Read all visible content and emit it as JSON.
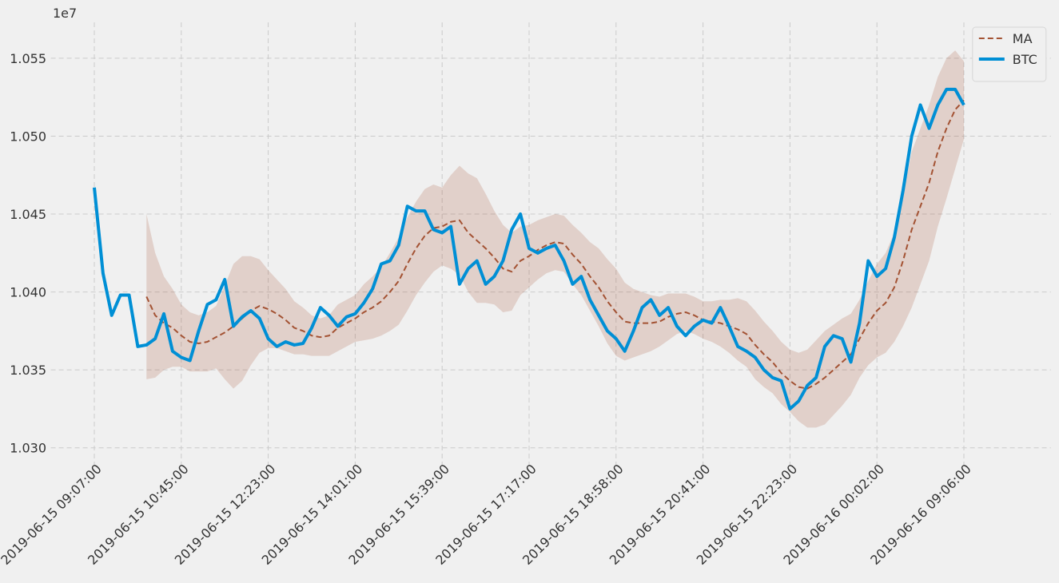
{
  "chart_data": {
    "type": "line",
    "y_offset_label": "1e7",
    "grid": true,
    "legend": "upper right",
    "xlim": [
      -50,
      1100
    ],
    "ylim": [
      10285000,
      10573000
    ],
    "xticks": [
      {
        "value": 0,
        "label": "2019-06-15 09:07:00"
      },
      {
        "value": 100,
        "label": "2019-06-15 10:45:00"
      },
      {
        "value": 200,
        "label": "2019-06-15 12:23:00"
      },
      {
        "value": 300,
        "label": "2019-06-15 14:01:00"
      },
      {
        "value": 400,
        "label": "2019-06-15 15:39:00"
      },
      {
        "value": 500,
        "label": "2019-06-15 17:17:00"
      },
      {
        "value": 600,
        "label": "2019-06-15 18:58:00"
      },
      {
        "value": 700,
        "label": "2019-06-15 20:41:00"
      },
      {
        "value": 800,
        "label": "2019-06-15 22:23:00"
      },
      {
        "value": 900,
        "label": "2019-06-16 00:02:00"
      },
      {
        "value": 1000,
        "label": "2019-06-16 09:06:00"
      }
    ],
    "yticks": [
      {
        "value": 10300000,
        "label": "1.030"
      },
      {
        "value": 10350000,
        "label": "1.035"
      },
      {
        "value": 10400000,
        "label": "1.040"
      },
      {
        "value": 10450000,
        "label": "1.045"
      },
      {
        "value": 10500000,
        "label": "1.050"
      },
      {
        "value": 10550000,
        "label": "1.055"
      }
    ],
    "x": [
      0,
      10,
      20,
      30,
      40,
      50,
      60,
      70,
      80,
      90,
      100,
      110,
      120,
      130,
      140,
      150,
      160,
      170,
      180,
      190,
      200,
      210,
      220,
      230,
      240,
      250,
      260,
      270,
      280,
      290,
      300,
      310,
      320,
      330,
      340,
      350,
      360,
      370,
      380,
      390,
      400,
      410,
      420,
      430,
      440,
      450,
      460,
      470,
      480,
      490,
      500,
      510,
      520,
      530,
      540,
      550,
      560,
      570,
      580,
      590,
      600,
      610,
      620,
      630,
      640,
      650,
      660,
      670,
      680,
      690,
      700,
      710,
      720,
      730,
      740,
      750,
      760,
      770,
      780,
      790,
      800,
      810,
      820,
      830,
      840,
      850,
      860,
      870,
      880,
      890,
      900,
      910,
      920,
      930,
      940,
      950,
      960,
      970,
      980,
      990,
      1000
    ],
    "band": {
      "color": "#a35233",
      "upper": [
        null,
        null,
        null,
        null,
        null,
        null,
        10450000,
        10425000,
        10410000,
        10402000,
        10392000,
        10387000,
        10385000,
        10387000,
        10391000,
        10404000,
        10418000,
        10423000,
        10423000,
        10421000,
        10414000,
        10408000,
        10402000,
        10394000,
        10390000,
        10385000,
        10383000,
        10385000,
        10392000,
        10395000,
        10398000,
        10405000,
        10410000,
        10416000,
        10425000,
        10435000,
        10448000,
        10458000,
        10466000,
        10469000,
        10467000,
        10475000,
        10481000,
        10476000,
        10473000,
        10463000,
        10452000,
        10443000,
        10438000,
        10442000,
        10443000,
        10446000,
        10448000,
        10450000,
        10449000,
        10443000,
        10438000,
        10432000,
        10428000,
        10421000,
        10415000,
        10406000,
        10402000,
        10400000,
        10398000,
        10397000,
        10399000,
        10399000,
        10399000,
        10397000,
        10394000,
        10394000,
        10395000,
        10395000,
        10396000,
        10394000,
        10388000,
        10381000,
        10375000,
        10368000,
        10363000,
        10361000,
        10363000,
        10369000,
        10375000,
        10379000,
        10383000,
        10386000,
        10395000,
        10407000,
        10418000,
        10425000,
        10438000,
        10462000,
        10490000,
        10505000,
        10520000,
        10538000,
        10550000,
        10555000,
        10548000
      ],
      "lower": [
        null,
        null,
        null,
        null,
        null,
        null,
        10344000,
        10345000,
        10350000,
        10352000,
        10352000,
        10349000,
        10349000,
        10349000,
        10351000,
        10344000,
        10338000,
        10343000,
        10353000,
        10361000,
        10364000,
        10364000,
        10362000,
        10360000,
        10360000,
        10359000,
        10359000,
        10359000,
        10362000,
        10365000,
        10368000,
        10369000,
        10370000,
        10372000,
        10375000,
        10379000,
        10388000,
        10398000,
        10406000,
        10413000,
        10417000,
        10415000,
        10411000,
        10400000,
        10393000,
        10393000,
        10392000,
        10387000,
        10388000,
        10398000,
        10403000,
        10408000,
        10412000,
        10414000,
        10413000,
        10405000,
        10398000,
        10388000,
        10378000,
        10367000,
        10359000,
        10356000,
        10358000,
        10360000,
        10362000,
        10365000,
        10369000,
        10373000,
        10375000,
        10373000,
        10370000,
        10368000,
        10365000,
        10361000,
        10356000,
        10352000,
        10344000,
        10339000,
        10335000,
        10328000,
        10323000,
        10317000,
        10313000,
        10313000,
        10315000,
        10321000,
        10327000,
        10334000,
        10345000,
        10353000,
        10358000,
        10361000,
        10368000,
        10378000,
        10390000,
        10405000,
        10420000,
        10442000,
        10460000,
        10479000,
        10498000
      ]
    },
    "series": [
      {
        "name": "MA",
        "color": "#a35233",
        "dashed": true,
        "values": [
          null,
          null,
          null,
          null,
          null,
          null,
          10397000,
          10385000,
          10380000,
          10377000,
          10372000,
          10368000,
          10367000,
          10368000,
          10371000,
          10374000,
          10378000,
          10383000,
          10388000,
          10391000,
          10389000,
          10386000,
          10382000,
          10377000,
          10375000,
          10372000,
          10371000,
          10372000,
          10377000,
          10380000,
          10383000,
          10387000,
          10390000,
          10394000,
          10400000,
          10407000,
          10418000,
          10428000,
          10436000,
          10441000,
          10442000,
          10445000,
          10446000,
          10438000,
          10433000,
          10428000,
          10422000,
          10415000,
          10413000,
          10420000,
          10423000,
          10427000,
          10430000,
          10432000,
          10431000,
          10424000,
          10418000,
          10410000,
          10403000,
          10394000,
          10387000,
          10381000,
          10380000,
          10380000,
          10380000,
          10381000,
          10384000,
          10386000,
          10387000,
          10385000,
          10382000,
          10381000,
          10380000,
          10378000,
          10376000,
          10373000,
          10366000,
          10360000,
          10355000,
          10348000,
          10343000,
          10339000,
          10338000,
          10341000,
          10345000,
          10350000,
          10355000,
          10360000,
          10370000,
          10380000,
          10388000,
          10393000,
          10403000,
          10420000,
          10440000,
          10455000,
          10470000,
          10490000,
          10505000,
          10517000,
          10523000
        ]
      },
      {
        "name": "BTC",
        "color": "#008fd5",
        "dashed": false,
        "values": [
          10467000,
          10412000,
          10385000,
          10398000,
          10398000,
          10365000,
          10366000,
          10370000,
          10386000,
          10362000,
          10358000,
          10356000,
          10375000,
          10392000,
          10395000,
          10408000,
          10378000,
          10384000,
          10388000,
          10383000,
          10370000,
          10365000,
          10368000,
          10366000,
          10367000,
          10377000,
          10390000,
          10385000,
          10378000,
          10384000,
          10386000,
          10393000,
          10402000,
          10418000,
          10420000,
          10430000,
          10455000,
          10452000,
          10452000,
          10440000,
          10438000,
          10442000,
          10405000,
          10415000,
          10420000,
          10405000,
          10410000,
          10420000,
          10440000,
          10450000,
          10428000,
          10425000,
          10428000,
          10430000,
          10420000,
          10405000,
          10410000,
          10395000,
          10385000,
          10375000,
          10370000,
          10362000,
          10375000,
          10390000,
          10395000,
          10385000,
          10390000,
          10378000,
          10372000,
          10378000,
          10382000,
          10380000,
          10390000,
          10378000,
          10365000,
          10362000,
          10358000,
          10350000,
          10345000,
          10343000,
          10325000,
          10330000,
          10340000,
          10345000,
          10365000,
          10372000,
          10370000,
          10355000,
          10380000,
          10420000,
          10410000,
          10415000,
          10435000,
          10465000,
          10500000,
          10520000,
          10505000,
          10520000,
          10530000,
          10530000,
          10520000
        ]
      }
    ]
  }
}
